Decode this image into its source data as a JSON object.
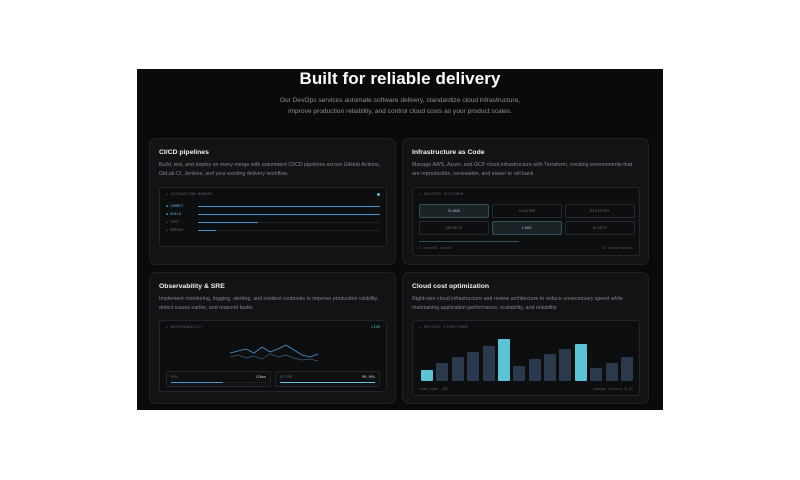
{
  "hero": {
    "title": "Built for reliable delivery",
    "subtitle_line1": "Our DevOps services automate software delivery, standardize cloud infrastructure,",
    "subtitle_line2": "improve production reliability, and control cloud costs as your product scales."
  },
  "cards": {
    "cicd": {
      "title": "CI/CD pipelines",
      "desc": "Build, test, and deploy on every merge with automated CI/CD pipelines across GitHub Actions, GitLab CI, Jenkins, and your existing delivery workflow.",
      "panel_label": "+ AUTOMATION RUNNER",
      "stages": [
        {
          "label": "◆ COMMIT",
          "progress": 1.0,
          "active": true
        },
        {
          "label": "◆ BUILD",
          "progress": 1.0,
          "active": true
        },
        {
          "label": "+ TEST",
          "progress": 0.33,
          "active": false
        },
        {
          "label": "+ DEPLOY",
          "progress": 0.1,
          "active": false
        }
      ]
    },
    "iac": {
      "title": "Infrastructure as Code",
      "desc": "Manage AWS, Azure, and GCP cloud infrastructure with Terraform, creating environments that are reproducible, reviewable, and easier to roll back.",
      "panel_label": "+ UNIFIED PLATFORM",
      "modules": [
        "CLOUD",
        "CLUSTER",
        "REGISTRY",
        "SECRETS",
        "LOGS",
        "ALERTS"
      ],
      "active_modules": [
        "CLOUD",
        "LOGS"
      ],
      "footer_left": "1 control plane",
      "footer_right": "6 integrations"
    },
    "sre": {
      "title": "Observability & SRE",
      "desc": "Implement monitoring, logging, alerting, and incident runbooks to improve production visibility, detect issues earlier, and respond faster.",
      "panel_label": "+ OBSERVABILITY",
      "live_label": "LIVE",
      "metrics": [
        {
          "key": "P95",
          "value": "115ms",
          "fill": 0.55,
          "color": "#4f97cf"
        },
        {
          "key": "UPTIME",
          "value": "99.99%",
          "fill": 1.0,
          "color": "#62c7d8"
        }
      ]
    },
    "cost": {
      "title": "Cloud cost optimization",
      "desc": "Right-size cloud infrastructure and review architecture to reduce unnecessary spend while maintaining application performance, scalability, and reliability.",
      "panel_label": "+ RELEASE ITERATIONS",
      "footer_left": "lead time -18%",
      "footer_right": "change failure 0.4%",
      "bar_levels": [
        0.25,
        0.42,
        0.55,
        0.65,
        0.8,
        0.95,
        0.35,
        0.5,
        0.62,
        0.72,
        0.85,
        0.3,
        0.4,
        0.55
      ],
      "highlighted_bars": [
        0,
        5,
        10
      ]
    }
  }
}
